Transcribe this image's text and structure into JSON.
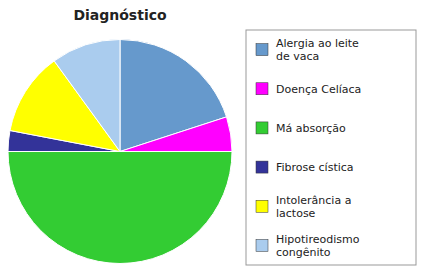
{
  "chart_data": {
    "type": "pie",
    "title": "Diagnóstico",
    "categories": [
      "Alergia ao leite\nde vaca",
      "Doença Celíaca",
      "Má absorção",
      "Fibrose cística",
      "Intolerância a\nlactose",
      "Hipotireodismo\ncongênito"
    ],
    "values": [
      20,
      5,
      50,
      3,
      12,
      10
    ],
    "colors": [
      "#6699CC",
      "#FF00FF",
      "#33CC33",
      "#333399",
      "#FFFF00",
      "#AACCEE"
    ],
    "legend": "right"
  }
}
